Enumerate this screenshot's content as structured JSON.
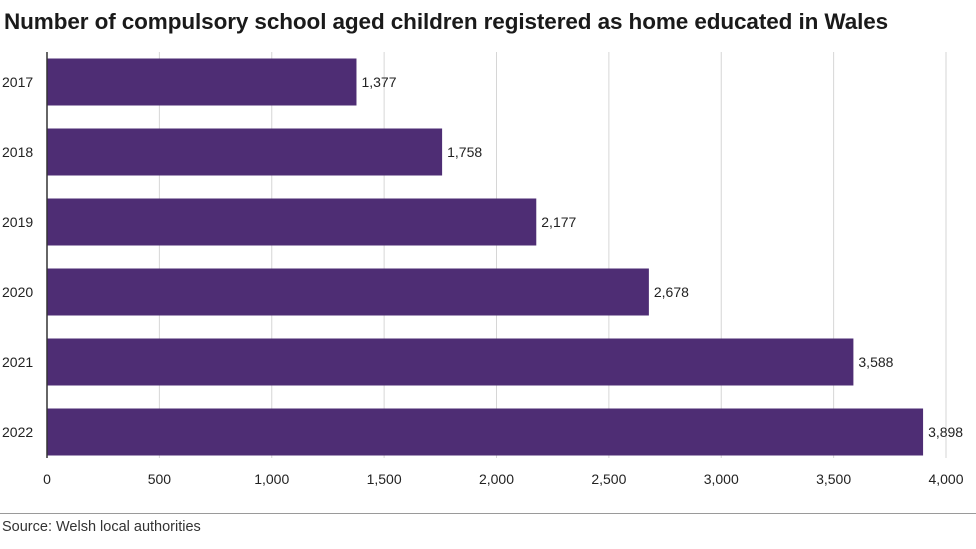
{
  "title": "Number of compulsory school aged children registered as home educated in Wales",
  "source": "Source: Welsh local authorities",
  "colors": {
    "bar": "#4e2d74",
    "grid": "#d6d6d6",
    "axis": "#333333"
  },
  "chart_data": {
    "type": "bar",
    "orientation": "horizontal",
    "title": "Number of compulsory school aged children registered as home educated in Wales",
    "categories": [
      "2017",
      "2018",
      "2019",
      "2020",
      "2021",
      "2022"
    ],
    "values": [
      1377,
      1758,
      2177,
      2678,
      3588,
      3898
    ],
    "value_labels": [
      "1,377",
      "1,758",
      "2,177",
      "2,678",
      "3,588",
      "3,898"
    ],
    "xlim": [
      0,
      4000
    ],
    "xticks": [
      0,
      500,
      1000,
      1500,
      2000,
      2500,
      3000,
      3500,
      4000
    ],
    "xtick_labels": [
      "0",
      "500",
      "1,000",
      "1,500",
      "2,000",
      "2,500",
      "3,000",
      "3,500",
      "4,000"
    ],
    "xlabel": "",
    "ylabel": "",
    "grid": true,
    "legend": "none"
  }
}
